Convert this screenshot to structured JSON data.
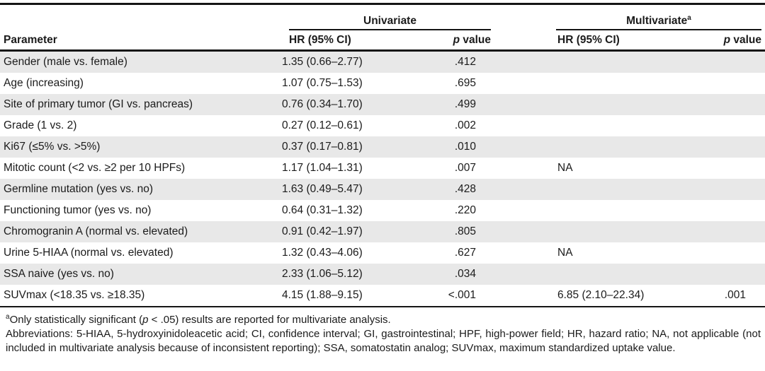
{
  "colors": {
    "row_stripe": "#e8e8e8",
    "rule": "#151515",
    "text": "#1b1b1b"
  },
  "table": {
    "groups": {
      "univariate": "Univariate",
      "multivariate": "Multivariate",
      "multivariate_sup": "a"
    },
    "col_headers": {
      "parameter": "Parameter",
      "hr": "HR (95% CI)",
      "p_italic": "p",
      "p_rest": " value"
    },
    "rows": [
      {
        "parameter": "Gender (male vs. female)",
        "uni_hr": "1.35 (0.66–2.77)",
        "uni_p": ".412",
        "multi_hr": "",
        "multi_p": ""
      },
      {
        "parameter": "Age (increasing)",
        "uni_hr": "1.07 (0.75–1.53)",
        "uni_p": ".695",
        "multi_hr": "",
        "multi_p": ""
      },
      {
        "parameter": "Site of primary tumor (GI vs. pancreas)",
        "uni_hr": "0.76 (0.34–1.70)",
        "uni_p": ".499",
        "multi_hr": "",
        "multi_p": ""
      },
      {
        "parameter": "Grade (1 vs. 2)",
        "uni_hr": "0.27 (0.12–0.61)",
        "uni_p": ".002",
        "multi_hr": "",
        "multi_p": ""
      },
      {
        "parameter": "Ki67 (≤5% vs. >5%)",
        "uni_hr": "0.37 (0.17–0.81)",
        "uni_p": ".010",
        "multi_hr": "",
        "multi_p": ""
      },
      {
        "parameter": "Mitotic count (<2 vs. ≥2 per 10 HPFs)",
        "uni_hr": "1.17 (1.04–1.31)",
        "uni_p": ".007",
        "multi_hr": "NA",
        "multi_p": ""
      },
      {
        "parameter": "Germline mutation (yes vs. no)",
        "uni_hr": "1.63 (0.49–5.47)",
        "uni_p": ".428",
        "multi_hr": "",
        "multi_p": ""
      },
      {
        "parameter": "Functioning tumor (yes vs. no)",
        "uni_hr": "0.64 (0.31–1.32)",
        "uni_p": ".220",
        "multi_hr": "",
        "multi_p": ""
      },
      {
        "parameter": "Chromogranin A (normal vs. elevated)",
        "uni_hr": "0.91 (0.42–1.97)",
        "uni_p": ".805",
        "multi_hr": "",
        "multi_p": ""
      },
      {
        "parameter": "Urine 5-HIAA (normal vs. elevated)",
        "uni_hr": "1.32 (0.43–4.06)",
        "uni_p": ".627",
        "multi_hr": "NA",
        "multi_p": ""
      },
      {
        "parameter": "SSA naive (yes vs. no)",
        "uni_hr": "2.33 (1.06–5.12)",
        "uni_p": ".034",
        "multi_hr": "",
        "multi_p": ""
      },
      {
        "parameter": "SUVmax (<18.35 vs. ≥18.35)",
        "uni_hr": "4.15 (1.88–9.15)",
        "uni_p": "<.001",
        "multi_hr": "6.85 (2.10–22.34)",
        "multi_p": ".001"
      }
    ]
  },
  "footnotes": {
    "a_sup": "a",
    "a_pre": "Only statistically significant (",
    "a_p": "p",
    "a_post": " < .05) results are reported for multivariate analysis.",
    "abbreviations": "Abbreviations: 5-HIAA, 5-hydroxyinidoleacetic acid; CI, confidence interval; GI, gastrointestinal; HPF, high-power field; HR, hazard ratio; NA, not applicable (not included in multivariate analysis because of inconsistent reporting); SSA, somatostatin analog; SUVmax, maximum standardized uptake value."
  }
}
